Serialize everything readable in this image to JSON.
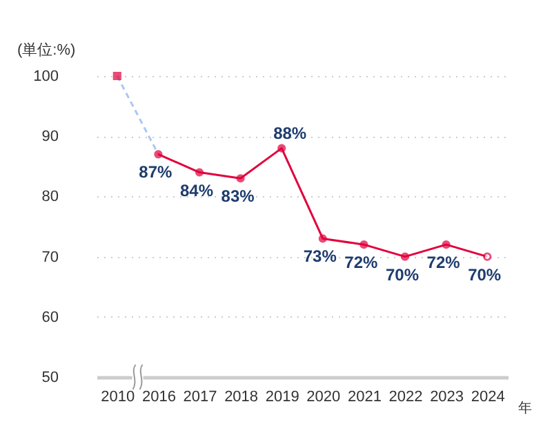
{
  "chart_data": {
    "type": "line",
    "ylabel": "(単位:%)",
    "xlabel": "年",
    "categories": [
      "2010",
      "2016",
      "2017",
      "2018",
      "2019",
      "2020",
      "2021",
      "2022",
      "2023",
      "2024"
    ],
    "series": [
      {
        "color": "#a9c9f2",
        "line_style": "dashed",
        "marker": "none",
        "values": [
          100,
          87,
          null,
          null,
          null,
          null,
          null,
          null,
          null,
          null
        ]
      },
      {
        "color": "#e1003c",
        "line_style": "solid",
        "marker": "circle",
        "values": [
          null,
          87,
          84,
          83,
          88,
          73,
          72,
          70,
          72,
          70
        ],
        "value_labels": [
          null,
          "87%",
          "84%",
          "83%",
          "88%",
          "73%",
          "72%",
          "70%",
          "72%",
          "70%"
        ]
      },
      {
        "type": "scatter",
        "color": "#e1003c",
        "marker": "square",
        "values": [
          100,
          null,
          null,
          null,
          null,
          null,
          null,
          null,
          null,
          null
        ]
      }
    ],
    "ylim": [
      50,
      100
    ],
    "yticks": [
      50,
      60,
      70,
      80,
      90,
      100
    ],
    "grid": "y"
  }
}
